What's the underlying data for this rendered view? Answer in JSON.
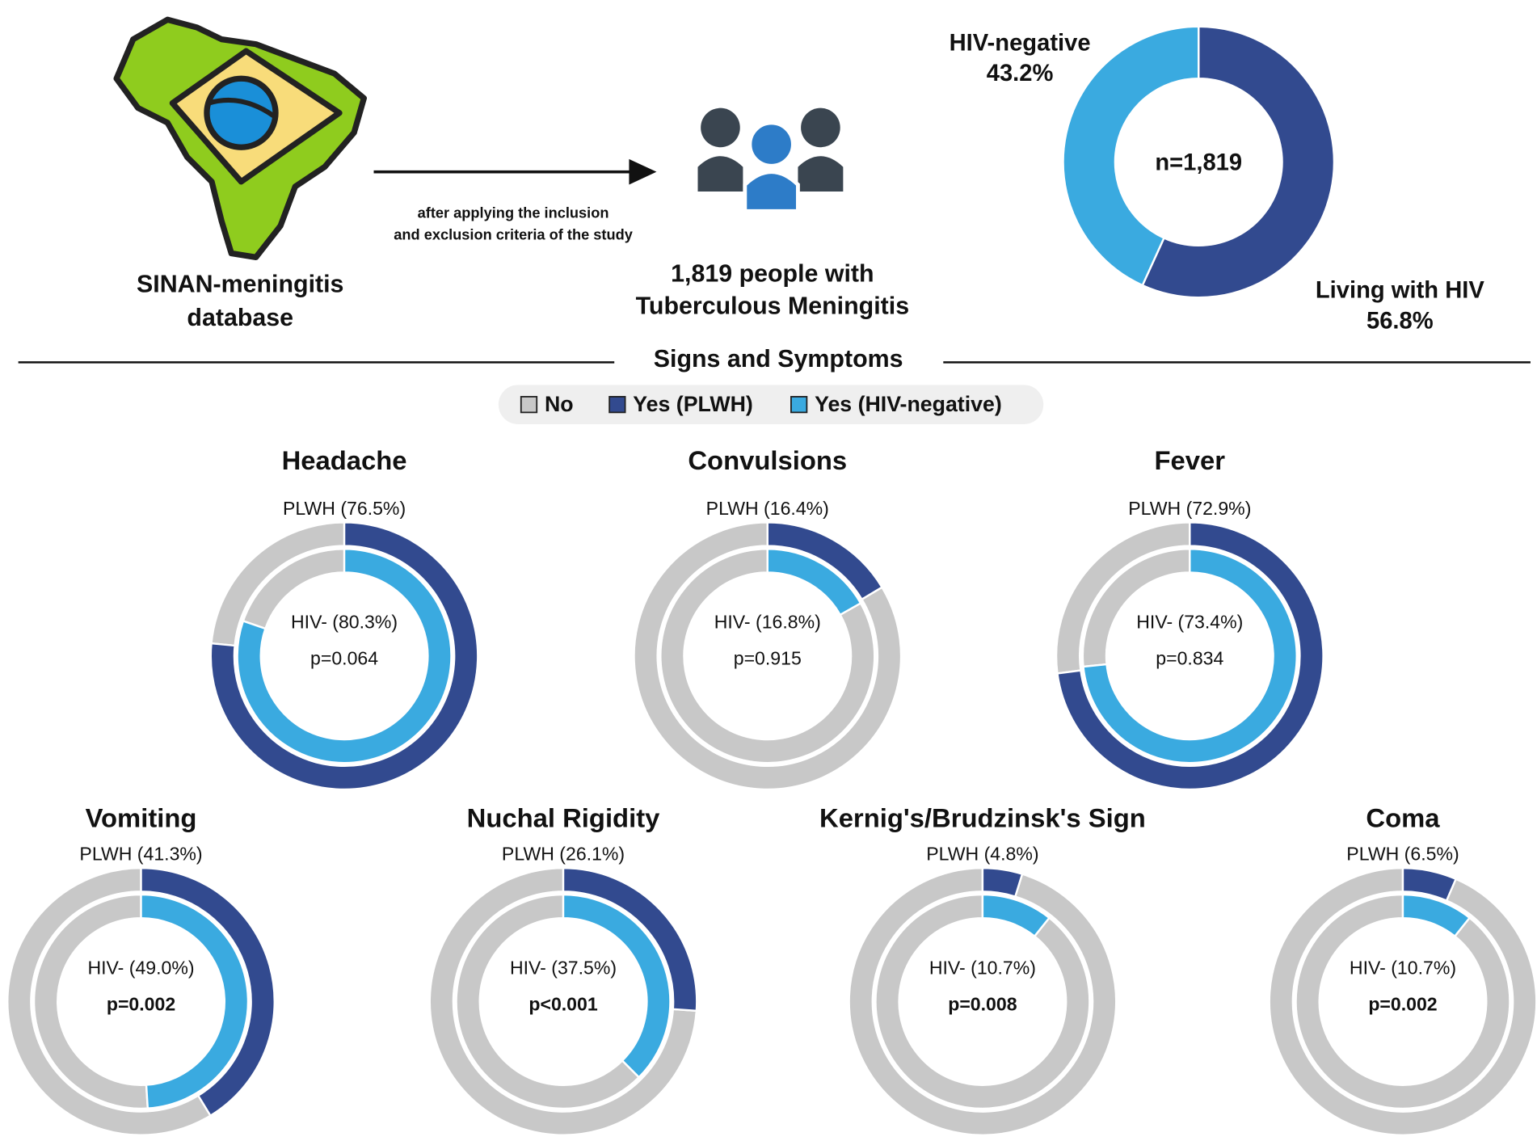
{
  "source_label": [
    "SINAN-meningitis",
    "database"
  ],
  "arrow_label": [
    "after applying the inclusion",
    "and exclusion criteria of the study"
  ],
  "population_label": [
    "1,819 people with",
    "Tuberculous Meningitis"
  ],
  "section_title": "Signs and Symptoms",
  "legend": [
    {
      "name": "No",
      "color": "#c8c8c8"
    },
    {
      "name": "Yes (PLWH)",
      "color": "#324a8f"
    },
    {
      "name": "Yes (HIV-negative)",
      "color": "#3aaae0"
    }
  ],
  "chart_data": [
    {
      "type": "donut",
      "center_label": "n=1,819",
      "categories": [
        "Living with HIV",
        "HIV-negative"
      ],
      "values": [
        56.8,
        43.2
      ],
      "value_labels": [
        "56.8%",
        "43.2%"
      ],
      "colors": [
        "#324a8f",
        "#3aaae0"
      ]
    },
    {
      "type": "double-donut",
      "title": "Headache",
      "series": [
        {
          "label": "PLWH (76.5%)",
          "value": 76.5
        },
        {
          "label": "HIV- (80.3%)",
          "value": 80.3
        }
      ],
      "annotation": "p=0.064",
      "bold": false
    },
    {
      "type": "double-donut",
      "title": "Convulsions",
      "series": [
        {
          "label": "PLWH (16.4%)",
          "value": 16.4
        },
        {
          "label": "HIV- (16.8%)",
          "value": 16.8
        }
      ],
      "annotation": "p=0.915",
      "bold": false
    },
    {
      "type": "double-donut",
      "title": "Fever",
      "series": [
        {
          "label": "PLWH (72.9%)",
          "value": 72.9
        },
        {
          "label": "HIV- (73.4%)",
          "value": 73.4
        }
      ],
      "annotation": "p=0.834",
      "bold": false
    },
    {
      "type": "double-donut",
      "title": "Vomiting",
      "series": [
        {
          "label": "PLWH (41.3%)",
          "value": 41.3
        },
        {
          "label": "HIV- (49.0%)",
          "value": 49.0
        }
      ],
      "annotation": "p=0.002",
      "bold": true
    },
    {
      "type": "double-donut",
      "title": "Nuchal Rigidity",
      "series": [
        {
          "label": "PLWH (26.1%)",
          "value": 26.1
        },
        {
          "label": "HIV- (37.5%)",
          "value": 37.5
        }
      ],
      "annotation": "p<0.001",
      "bold": true
    },
    {
      "type": "double-donut",
      "title": "Kernig's/Brudzinsk's Sign",
      "series": [
        {
          "label": "PLWH (4.8%)",
          "value": 4.8
        },
        {
          "label": "HIV- (10.7%)",
          "value": 10.7
        }
      ],
      "annotation": "p=0.008",
      "bold": true
    },
    {
      "type": "double-donut",
      "title": "Coma",
      "series": [
        {
          "label": "PLWH (6.5%)",
          "value": 6.5
        },
        {
          "label": "HIV- (10.7%)",
          "value": 10.7
        }
      ],
      "annotation": "p=0.002",
      "bold": true
    }
  ]
}
